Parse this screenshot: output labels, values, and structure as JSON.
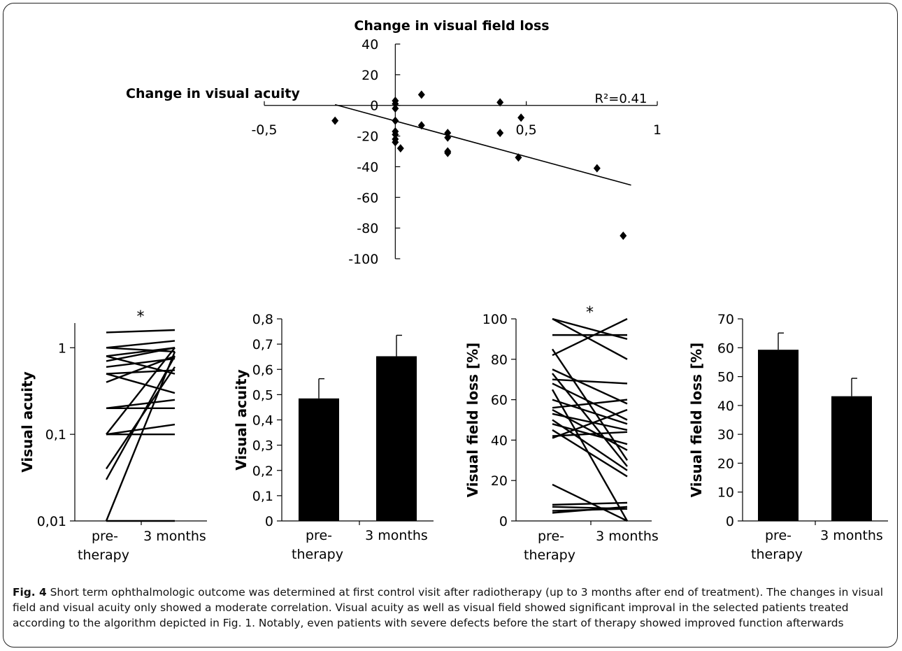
{
  "figure": {
    "caption_label": "Fig. 4",
    "caption_text": " Short term ophthalmologic outcome was determined at first control visit after radiotherapy (up to 3 months after end of treatment). The changes in visual field and visual acuity only showed a moderate correlation. Visual acuity as well as visual field showed significant improval in the selected patients treated according to the algorithm depicted in Fig. 1. Notably, even patients with severe defects before the start of therapy showed improved function afterwards"
  },
  "chart_data": [
    {
      "type": "scatter",
      "title": "Change in visual field loss",
      "xlabel": "Change in visual acuity",
      "ylabel": "",
      "annotation": "R²=0.41",
      "xlim": [
        -0.5,
        1
      ],
      "ylim": [
        -100,
        40
      ],
      "xticks": [
        "-0,5",
        "0,5",
        "1"
      ],
      "yticks": [
        "40",
        "20",
        "0",
        "-20",
        "-40",
        "-60",
        "-80",
        "-100"
      ],
      "points": [
        [
          -0.23,
          -10
        ],
        [
          0.0,
          3
        ],
        [
          0.0,
          1
        ],
        [
          0.0,
          -2
        ],
        [
          0.0,
          -10
        ],
        [
          0.0,
          -17
        ],
        [
          0.0,
          -19
        ],
        [
          0.0,
          -22
        ],
        [
          0.0,
          -24
        ],
        [
          0.02,
          -28
        ],
        [
          0.1,
          7
        ],
        [
          0.1,
          -13
        ],
        [
          0.2,
          -18
        ],
        [
          0.2,
          -21
        ],
        [
          0.2,
          -30
        ],
        [
          0.2,
          -31
        ],
        [
          0.4,
          2
        ],
        [
          0.4,
          -18
        ],
        [
          0.47,
          -34
        ],
        [
          0.48,
          -8
        ],
        [
          0.77,
          -41
        ],
        [
          0.87,
          -85
        ]
      ],
      "trendline": [
        [
          -0.23,
          0.5
        ],
        [
          0.9,
          -52
        ]
      ]
    },
    {
      "type": "line",
      "ylabel": "Visual acuity",
      "scale": "log",
      "ylim": [
        0.01,
        2
      ],
      "yticks": [
        "1",
        "0,1",
        "0,01"
      ],
      "categories": [
        "pre-\ntherapy",
        "3 months"
      ],
      "significance": "*",
      "pairs": [
        [
          1.5,
          1.6
        ],
        [
          1.0,
          1.2
        ],
        [
          1.0,
          0.9
        ],
        [
          0.8,
          1.0
        ],
        [
          0.8,
          0.5
        ],
        [
          0.7,
          1.0
        ],
        [
          0.6,
          0.75
        ],
        [
          0.5,
          0.55
        ],
        [
          0.5,
          0.3
        ],
        [
          0.4,
          0.8
        ],
        [
          0.2,
          0.2
        ],
        [
          0.2,
          0.25
        ],
        [
          0.1,
          0.1
        ],
        [
          0.1,
          0.13
        ],
        [
          0.1,
          1.0
        ],
        [
          0.04,
          0.6
        ],
        [
          0.03,
          0.8
        ],
        [
          0.01,
          0.01
        ],
        [
          0.01,
          0.9
        ]
      ]
    },
    {
      "type": "bar",
      "ylabel": "Visual acuity",
      "ylim": [
        0,
        0.8
      ],
      "yticks": [
        "0,8",
        "0,7",
        "0,6",
        "0,5",
        "0,4",
        "0,3",
        "0,2",
        "0,1",
        "0"
      ],
      "categories": [
        "pre-\ntherapy",
        "3 months"
      ],
      "values": [
        0.485,
        0.652
      ],
      "errors": [
        0.078,
        0.083
      ]
    },
    {
      "type": "line",
      "ylabel": "Visual field loss [%]",
      "ylim": [
        0,
        100
      ],
      "yticks": [
        "100",
        "80",
        "60",
        "40",
        "20",
        "0"
      ],
      "categories": [
        "pre-\ntherapy",
        "3 months"
      ],
      "significance": "*",
      "pairs": [
        [
          100,
          80
        ],
        [
          100,
          90
        ],
        [
          92,
          92
        ],
        [
          85,
          30
        ],
        [
          82,
          100
        ],
        [
          75,
          58
        ],
        [
          73,
          27
        ],
        [
          70,
          68
        ],
        [
          68,
          50
        ],
        [
          65,
          0
        ],
        [
          60,
          48
        ],
        [
          56,
          60
        ],
        [
          55,
          35
        ],
        [
          53,
          45
        ],
        [
          50,
          25
        ],
        [
          48,
          38
        ],
        [
          45,
          22
        ],
        [
          42,
          44
        ],
        [
          41,
          55
        ],
        [
          18,
          0
        ],
        [
          8,
          9
        ],
        [
          7,
          6
        ],
        [
          5,
          6
        ],
        [
          4,
          7
        ]
      ]
    },
    {
      "type": "bar",
      "ylabel": "Visual field loss [%]",
      "ylim": [
        0,
        70
      ],
      "yticks": [
        "70",
        "60",
        "50",
        "40",
        "30",
        "20",
        "10",
        "0"
      ],
      "categories": [
        "pre-\ntherapy",
        "3 months"
      ],
      "values": [
        59.3,
        43.2
      ],
      "errors": [
        5.8,
        6.2
      ]
    }
  ]
}
